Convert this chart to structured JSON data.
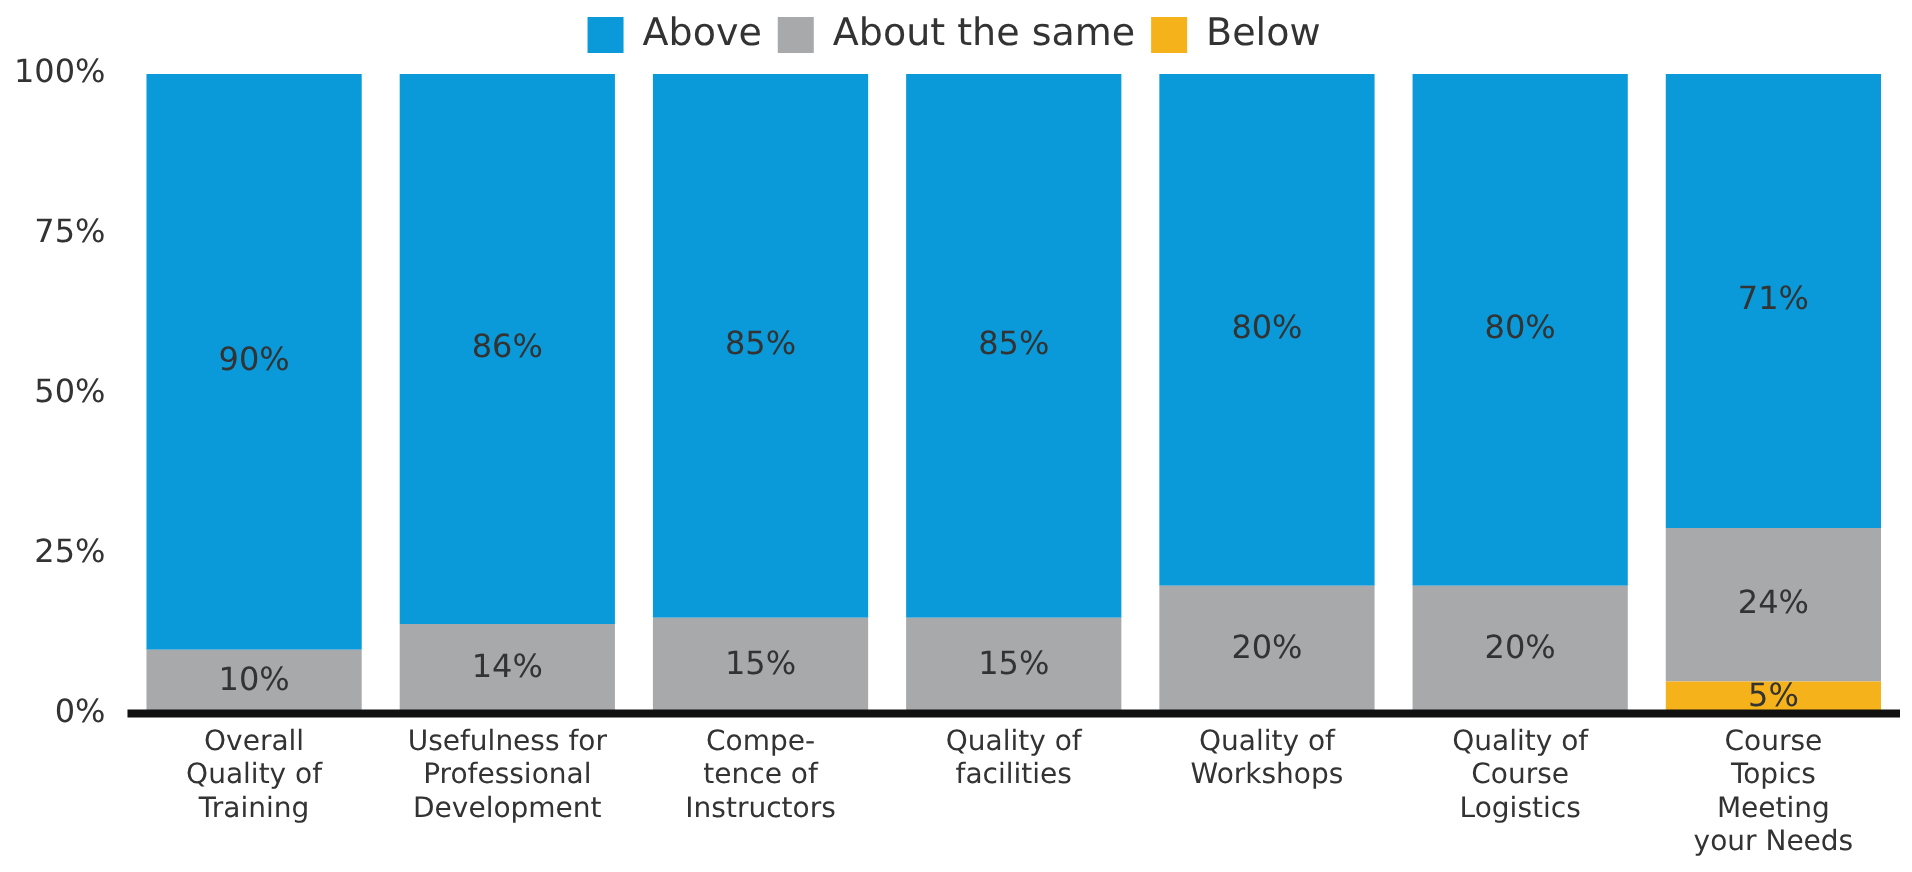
{
  "chart_data": {
    "type": "bar",
    "stacked": true,
    "categories": [
      "Overall\nQuality of\nTraining",
      "Usefulness for\nProfessional\nDevelopment",
      "Compe-\ntence of\nInstructors",
      "Quality of\nfacilities",
      "Quality of\nWorkshops",
      "Quality of\nCourse\nLogistics",
      "Course\nTopics\nMeeting\nyour Needs"
    ],
    "series": [
      {
        "name": "Below",
        "color": "#f6b21b",
        "values": [
          null,
          null,
          null,
          null,
          null,
          null,
          5
        ],
        "value_labels": [
          null,
          null,
          null,
          null,
          null,
          null,
          "5%"
        ]
      },
      {
        "name": "About the same",
        "color": "#a7a9ab",
        "values": [
          10,
          14,
          15,
          15,
          20,
          20,
          24
        ],
        "value_labels": [
          "10%",
          "14%",
          "15%",
          "15%",
          "20%",
          "20%",
          "24%"
        ]
      },
      {
        "name": "Above",
        "color": "#0a9ad9",
        "values": [
          90,
          86,
          85,
          85,
          80,
          80,
          71
        ],
        "value_labels": [
          "90%",
          "86%",
          "85%",
          "85%",
          "80%",
          "80%",
          "71%"
        ]
      }
    ],
    "ylim": [
      0,
      100
    ],
    "yticks": [
      {
        "value": 0,
        "label": "0%"
      },
      {
        "value": 25,
        "label": "25%"
      },
      {
        "value": 50,
        "label": "50%"
      },
      {
        "value": 75,
        "label": "75%"
      },
      {
        "value": 100,
        "label": "100%"
      }
    ],
    "legend": "top"
  }
}
